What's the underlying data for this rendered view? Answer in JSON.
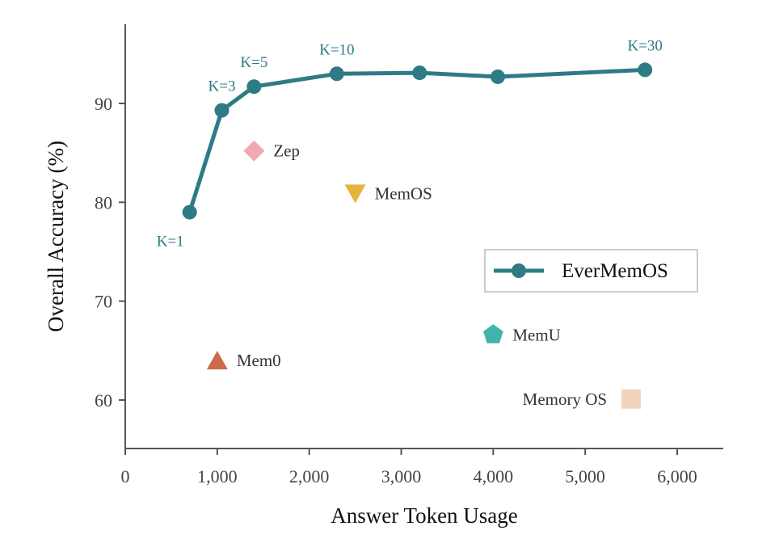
{
  "chart_data": {
    "type": "scatter",
    "title": "",
    "xlabel": "Answer Token Usage",
    "ylabel": "Overall Accuracy (%)",
    "xlim": [
      0,
      6500
    ],
    "ylim": [
      55,
      98
    ],
    "x_ticks": [
      {
        "value": 0,
        "label": "0"
      },
      {
        "value": 1000,
        "label": "1,000"
      },
      {
        "value": 2000,
        "label": "2,000"
      },
      {
        "value": 3000,
        "label": "3,000"
      },
      {
        "value": 4000,
        "label": "4,000"
      },
      {
        "value": 5000,
        "label": "5,000"
      },
      {
        "value": 6000,
        "label": "6,000"
      }
    ],
    "y_ticks": [
      {
        "value": 60,
        "label": "60"
      },
      {
        "value": 70,
        "label": "70"
      },
      {
        "value": 80,
        "label": "80"
      },
      {
        "value": 90,
        "label": "90"
      }
    ],
    "grid": false,
    "legend_position": "right",
    "series": [
      {
        "name": "EverMemOS",
        "color": "#2e7b85",
        "marker": "circle",
        "points": [
          {
            "x": 700,
            "y": 79.0,
            "label": "K=1"
          },
          {
            "x": 1050,
            "y": 89.3,
            "label": "K=3"
          },
          {
            "x": 1400,
            "y": 91.7,
            "label": "K=5"
          },
          {
            "x": 2300,
            "y": 93.0,
            "label": "K=10"
          },
          {
            "x": 3200,
            "y": 93.1,
            "label": ""
          },
          {
            "x": 4050,
            "y": 92.7,
            "label": ""
          },
          {
            "x": 5650,
            "y": 93.4,
            "label": "K=30"
          }
        ]
      }
    ],
    "methods": [
      {
        "name": "Zep",
        "x": 1400,
        "y": 85.2,
        "marker": "diamond",
        "color": "#f0aab0",
        "label_side": "right"
      },
      {
        "name": "MemOS",
        "x": 2500,
        "y": 80.9,
        "marker": "triangle-down",
        "color": "#e6b43c",
        "label_side": "right"
      },
      {
        "name": "Mem0",
        "x": 1000,
        "y": 64.0,
        "marker": "triangle-up",
        "color": "#c96c4b",
        "label_side": "right"
      },
      {
        "name": "MemU",
        "x": 4000,
        "y": 66.6,
        "marker": "pentagon",
        "color": "#3fb3ac",
        "label_side": "right"
      },
      {
        "name": "Memory OS",
        "x": 5500,
        "y": 60.1,
        "marker": "square",
        "color": "#f0d4bd",
        "label_side": "left"
      }
    ]
  }
}
